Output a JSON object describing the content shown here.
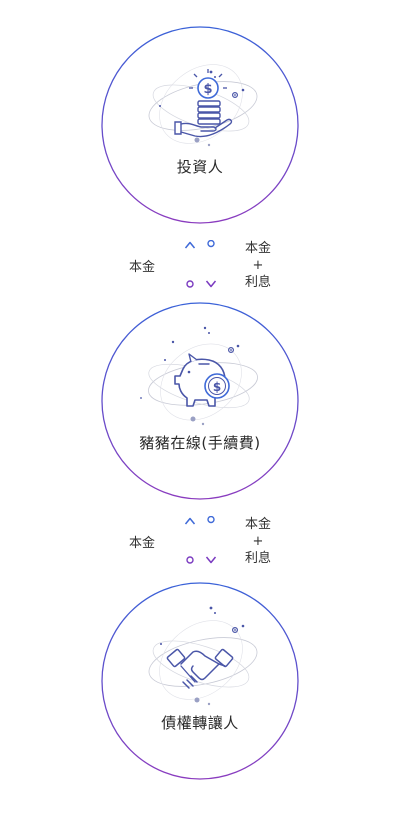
{
  "colors": {
    "ring_top": "#3f5fd6",
    "ring_bottom": "#8a3fc0",
    "icon_primary": "#4a56a8",
    "accent_blue": "#3f6ad8",
    "accent_purple": "#7a3ac0"
  },
  "nodes": [
    {
      "label": "投資人",
      "icon": "coin-hand-icon"
    },
    {
      "label": "豬豬在線(手續費)",
      "icon": "piggy-bank-icon"
    },
    {
      "label": "債權轉讓人",
      "icon": "handshake-icon"
    }
  ],
  "flows": [
    {
      "left": "本金",
      "right_top": "本金",
      "right_plus": "+",
      "right_bottom": "利息"
    },
    {
      "left": "本金",
      "right_top": "本金",
      "right_plus": "+",
      "right_bottom": "利息"
    }
  ]
}
